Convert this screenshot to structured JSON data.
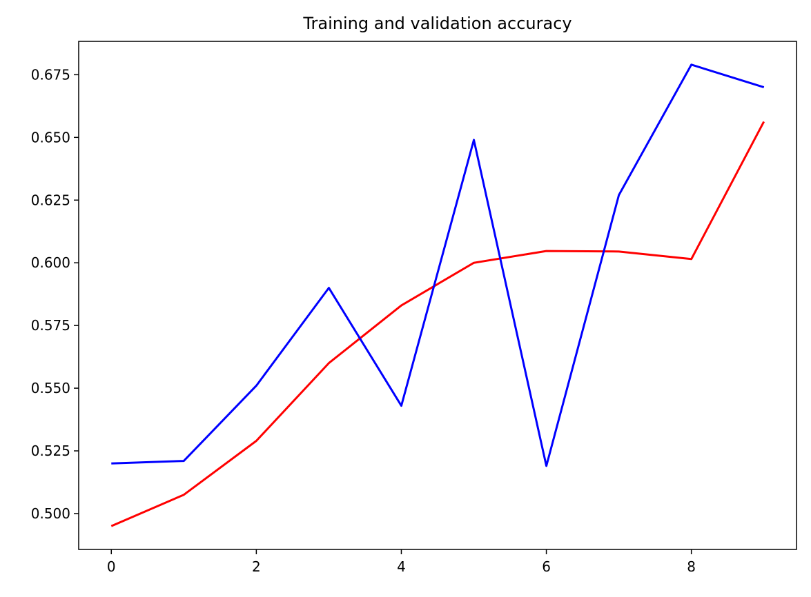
{
  "chart_data": {
    "type": "line",
    "title": "Training and validation accuracy",
    "xlabel": "",
    "ylabel": "",
    "x": [
      0,
      1,
      2,
      3,
      4,
      5,
      6,
      7,
      8,
      9
    ],
    "xlim": [
      -0.45,
      9.45
    ],
    "ylim": [
      0.4857,
      0.6883
    ],
    "x_ticks": [
      0,
      2,
      4,
      6,
      8
    ],
    "x_tick_labels": [
      "0",
      "2",
      "4",
      "6",
      "8"
    ],
    "y_ticks": [
      0.5,
      0.525,
      0.55,
      0.575,
      0.6,
      0.625,
      0.65,
      0.675
    ],
    "y_tick_labels": [
      "0.500",
      "0.525",
      "0.550",
      "0.575",
      "0.600",
      "0.625",
      "0.650",
      "0.675"
    ],
    "grid": false,
    "legend": "none",
    "series": [
      {
        "color": "#ff0000",
        "values": [
          0.495,
          0.5075,
          0.529,
          0.56,
          0.583,
          0.6,
          0.6047,
          0.6045,
          0.6015,
          0.6563
        ]
      },
      {
        "color": "#0000ff",
        "values": [
          0.52,
          0.521,
          0.551,
          0.59,
          0.543,
          0.649,
          0.519,
          0.627,
          0.679,
          0.67
        ]
      }
    ]
  }
}
